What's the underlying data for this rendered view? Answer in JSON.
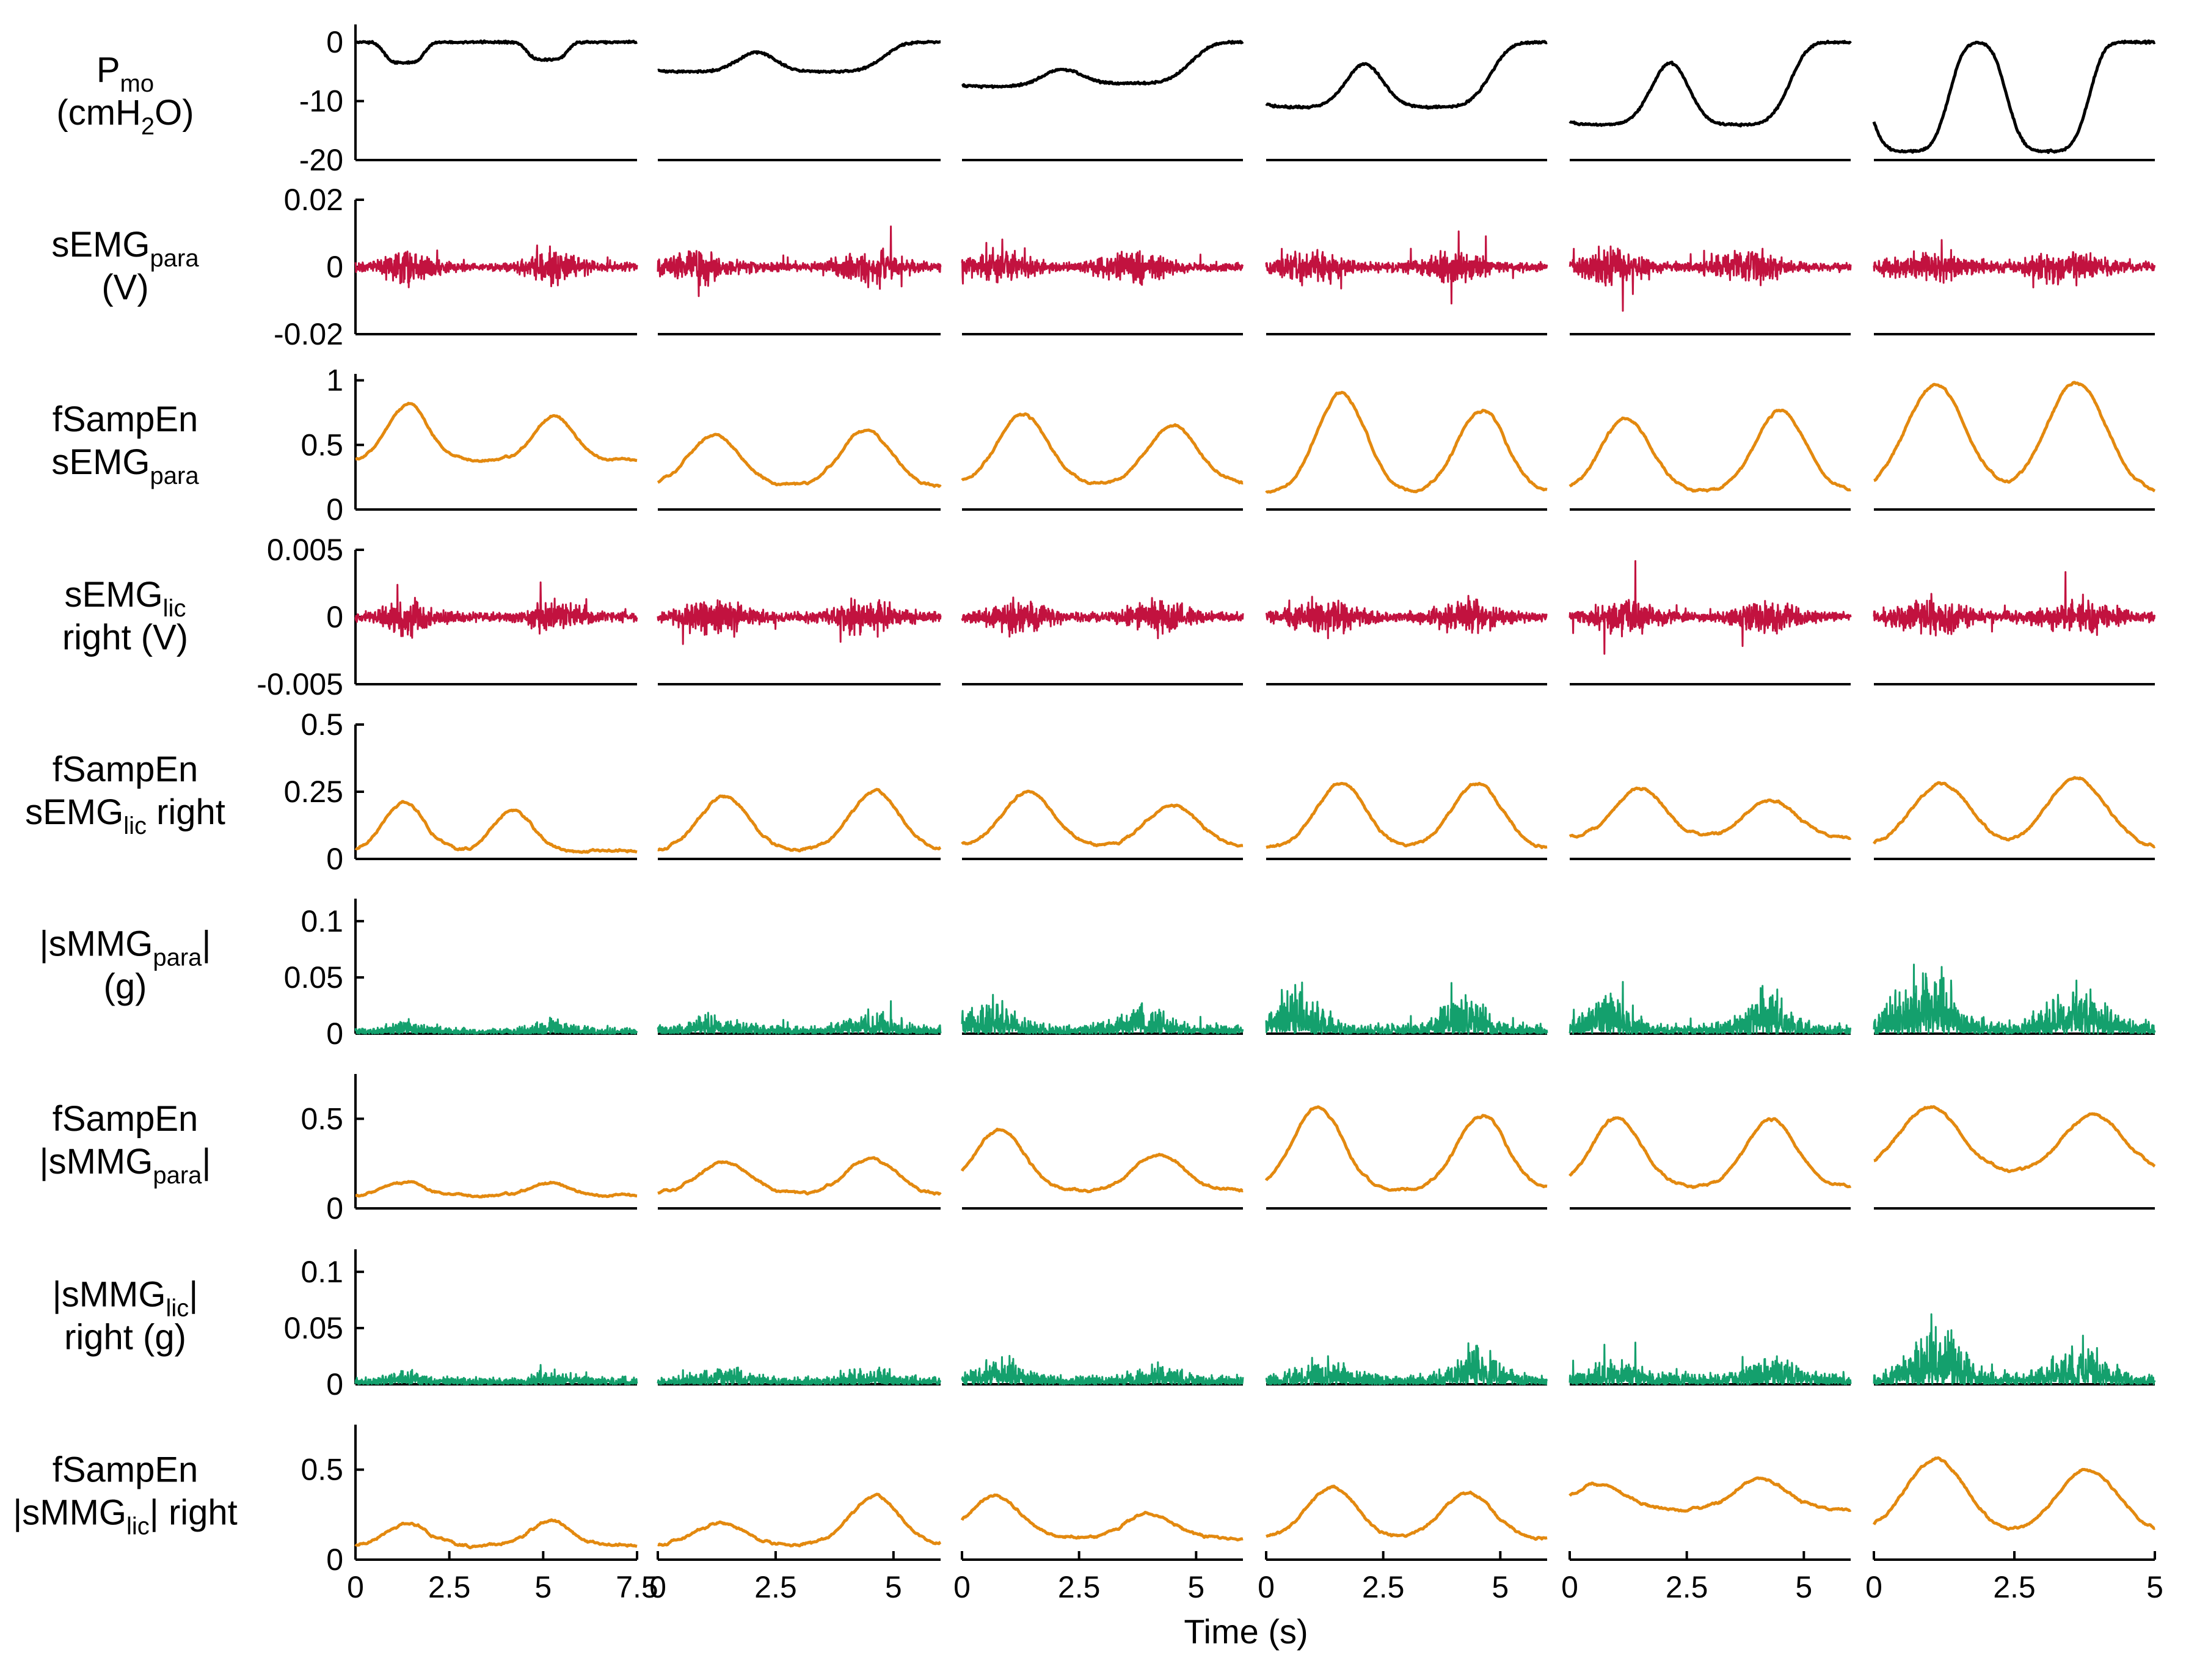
{
  "colors": {
    "pressure": "#000000",
    "emg": "#c2123f",
    "mmg": "#14a06d",
    "entropy": "#e3890f",
    "axis": "#000000"
  },
  "chart_data": {
    "type": "line",
    "title": "",
    "xlabel": "Time (s)",
    "subject_panels": 6,
    "columns": [
      {
        "xlim": [
          0,
          7.5
        ],
        "ticks": [
          0,
          2.5,
          5,
          7.5
        ],
        "tick_labels": [
          "0",
          "2.5",
          "5",
          "7.5"
        ],
        "ticks_text": "0      2.5      5      7.5"
      },
      {
        "xlim": [
          0,
          6
        ],
        "ticks": [
          0,
          2.5,
          5
        ],
        "tick_labels": [
          "0",
          "2.5",
          "5"
        ],
        "ticks_text": "0      2.5      5"
      },
      {
        "xlim": [
          0,
          6
        ],
        "ticks": [
          0,
          2.5,
          5
        ],
        "tick_labels": [
          "0",
          "2.5",
          "5"
        ],
        "ticks_text": "0      2.5      5"
      },
      {
        "xlim": [
          0,
          6
        ],
        "ticks": [
          0,
          2.5,
          5
        ],
        "tick_labels": [
          "0",
          "2.5",
          "5"
        ],
        "ticks_text": "0      2.5      5"
      },
      {
        "xlim": [
          0,
          6
        ],
        "ticks": [
          0,
          2.5,
          5
        ],
        "tick_labels": [
          "0",
          "2.5",
          "5"
        ],
        "ticks_text": "0      2.5      5"
      },
      {
        "xlim": [
          0,
          5
        ],
        "ticks": [
          0,
          2.5,
          5
        ],
        "tick_labels": [
          "0",
          "2.5",
          "5"
        ],
        "ticks_text": "0      2.5      5"
      }
    ],
    "x_tick_labels_shown": [
      "0",
      "2.5",
      "5",
      "7.5",
      "0",
      "2.5",
      "5",
      "0",
      "2.5",
      "5",
      "0",
      "2.5",
      "5",
      "0",
      "2.5",
      "5",
      "0",
      "2.5",
      "5"
    ],
    "rows": [
      {
        "id": "pmo",
        "label_lines": [
          {
            "main": "P",
            "sub": "mo",
            "post": ""
          },
          {
            "main": "(cmH",
            "sub": "2",
            "post": "O)"
          }
        ],
        "label_text": "Pmo (cmH2O)",
        "ylim": [
          -20,
          3
        ],
        "yticks": [
          -20,
          -10,
          0
        ],
        "ytick_labels": [
          "-20",
          "-10",
          "0"
        ],
        "color_key": "pressure",
        "kind": "pressure",
        "peaks_per_column": [
          [
            {
              "t": 1.3,
              "v": -3.5,
              "w": 0.6
            },
            {
              "t": 5.1,
              "v": -3,
              "w": 0.6
            }
          ],
          [
            {
              "t": 0.6,
              "v": -5,
              "w": 1.3
            },
            {
              "t": 3.6,
              "v": -5,
              "w": 1.3
            }
          ],
          [
            {
              "t": 0.6,
              "v": -7.5,
              "w": 1.5
            },
            {
              "t": 3.6,
              "v": -7,
              "w": 1.4
            }
          ],
          [
            {
              "t": 0.6,
              "v": -11,
              "w": 1.3
            },
            {
              "t": 3.6,
              "v": -11,
              "w": 1.3
            }
          ],
          [
            {
              "t": 0.6,
              "v": -14,
              "w": 1.3
            },
            {
              "t": 3.6,
              "v": -14,
              "w": 1.2
            }
          ],
          [
            {
              "t": 0.6,
              "v": -18.5,
              "w": 0.8
            },
            {
              "t": 3.1,
              "v": -18.5,
              "w": 0.8
            }
          ]
        ]
      },
      {
        "id": "semg_para",
        "label_lines": [
          {
            "main": "sEMG",
            "sub": "para",
            "post": ""
          },
          {
            "main": "(V)",
            "sub": "",
            "post": ""
          }
        ],
        "label_text": "sEMGpara (V)",
        "ylim": [
          -0.02,
          0.02
        ],
        "yticks": [
          -0.02,
          0,
          0.02
        ],
        "ytick_labels": [
          "-0.02",
          "0",
          "0.02"
        ],
        "color_key": "emg",
        "kind": "noise_signed",
        "amplitude": 0.005,
        "bursts_per_column": [
          [
            1.4,
            5.3
          ],
          [
            0.8,
            4.5
          ],
          [
            0.8,
            3.6
          ],
          [
            1.0,
            4.0
          ],
          [
            0.9,
            3.8
          ],
          [
            1.0,
            3.4
          ]
        ]
      },
      {
        "id": "fsampen_semg_para",
        "label_lines": [
          {
            "main": "fSampEn",
            "sub": "",
            "post": ""
          },
          {
            "main": "sEMG",
            "sub": "para",
            "post": ""
          }
        ],
        "label_text": "fSampEn sEMGpara",
        "ylim": [
          0,
          1.05
        ],
        "yticks": [
          0,
          0.5,
          1
        ],
        "ytick_labels": [
          "0",
          "0.5",
          "1"
        ],
        "color_key": "entropy",
        "kind": "entropy",
        "base_per_column": [
          0.38,
          0.18,
          0.2,
          0.12,
          0.14,
          0.12
        ],
        "peaks_per_column": [
          [
            {
              "t": 1.4,
              "v": 0.82
            },
            {
              "t": 5.3,
              "v": 0.72
            }
          ],
          [
            {
              "t": 1.2,
              "v": 0.58
            },
            {
              "t": 4.4,
              "v": 0.62
            }
          ],
          [
            {
              "t": 1.3,
              "v": 0.74
            },
            {
              "t": 4.5,
              "v": 0.65
            }
          ],
          [
            {
              "t": 1.6,
              "v": 0.9
            },
            {
              "t": 4.6,
              "v": 0.77
            }
          ],
          [
            {
              "t": 1.2,
              "v": 0.7
            },
            {
              "t": 4.5,
              "v": 0.77
            }
          ],
          [
            {
              "t": 1.1,
              "v": 0.97
            },
            {
              "t": 3.6,
              "v": 0.98
            }
          ]
        ]
      },
      {
        "id": "semg_lic",
        "label_lines": [
          {
            "main": "sEMG",
            "sub": "lic",
            "post": ""
          },
          {
            "main": "right (V)",
            "sub": "",
            "post": ""
          }
        ],
        "label_text": "sEMGlic right (V)",
        "ylim": [
          -0.005,
          0.005
        ],
        "yticks": [
          -0.005,
          0,
          0.005
        ],
        "ytick_labels": [
          "-0.005",
          "0",
          "0.005"
        ],
        "color_key": "emg",
        "kind": "noise_signed",
        "amplitude": 0.0013,
        "bursts_per_column": [
          [
            1.4,
            5.3
          ],
          [
            1.2,
            4.4
          ],
          [
            1.2,
            4.2
          ],
          [
            1.2,
            4.3
          ],
          [
            1.2,
            4.2
          ],
          [
            1.0,
            3.6
          ]
        ]
      },
      {
        "id": "fsampen_semg_lic",
        "label_lines": [
          {
            "main": "fSampEn",
            "sub": "",
            "post": ""
          },
          {
            "main": "sEMG",
            "sub": "lic",
            "post": " right"
          }
        ],
        "label_text": "fSampEn sEMGlic right",
        "ylim": [
          0,
          0.5
        ],
        "yticks": [
          0,
          0.25,
          0.5
        ],
        "ytick_labels": [
          "0",
          "0.25",
          "0.5"
        ],
        "color_key": "entropy",
        "kind": "entropy",
        "base_per_column": [
          0.03,
          0.03,
          0.05,
          0.04,
          0.08,
          0.04
        ],
        "peaks_per_column": [
          [
            {
              "t": 1.3,
              "v": 0.21
            },
            {
              "t": 4.2,
              "v": 0.18
            }
          ],
          [
            {
              "t": 1.4,
              "v": 0.23
            },
            {
              "t": 4.6,
              "v": 0.25
            }
          ],
          [
            {
              "t": 1.4,
              "v": 0.25
            },
            {
              "t": 4.5,
              "v": 0.2
            }
          ],
          [
            {
              "t": 1.6,
              "v": 0.28
            },
            {
              "t": 4.5,
              "v": 0.28
            }
          ],
          [
            {
              "t": 1.5,
              "v": 0.26
            },
            {
              "t": 4.3,
              "v": 0.22
            }
          ],
          [
            {
              "t": 1.2,
              "v": 0.28
            },
            {
              "t": 3.6,
              "v": 0.3
            }
          ]
        ]
      },
      {
        "id": "smmg_para",
        "label_lines": [
          {
            "main": "|sMMG",
            "sub": "para",
            "post": "|"
          },
          {
            "main": "(g)",
            "sub": "",
            "post": ""
          }
        ],
        "label_text": "|sMMGpara| (g)",
        "ylim": [
          0,
          0.12
        ],
        "yticks": [
          0,
          0.05,
          0.1
        ],
        "ytick_labels": [
          "0",
          "0.05",
          "0.1"
        ],
        "color_key": "mmg",
        "kind": "noise_abs",
        "base_per_column": [
          0.005,
          0.007,
          0.008,
          0.008,
          0.008,
          0.01
        ],
        "peaks_per_column": [
          [
            {
              "t": 1.4,
              "v": 0.007
            },
            {
              "t": 5.3,
              "v": 0.008
            }
          ],
          [
            {
              "t": 1.2,
              "v": 0.01
            },
            {
              "t": 4.5,
              "v": 0.013
            }
          ],
          [
            {
              "t": 0.6,
              "v": 0.025
            },
            {
              "t": 3.8,
              "v": 0.018
            }
          ],
          [
            {
              "t": 0.7,
              "v": 0.035
            },
            {
              "t": 4.2,
              "v": 0.03
            }
          ],
          [
            {
              "t": 0.8,
              "v": 0.025
            },
            {
              "t": 4.2,
              "v": 0.03
            }
          ],
          [
            {
              "t": 0.9,
              "v": 0.06
            },
            {
              "t": 3.6,
              "v": 0.035
            }
          ]
        ]
      },
      {
        "id": "fsampen_smmg_para",
        "label_lines": [
          {
            "main": "fSampEn",
            "sub": "",
            "post": ""
          },
          {
            "main": "|sMMG",
            "sub": "para",
            "post": "|"
          }
        ],
        "label_text": "fSampEn |sMMGpara|",
        "ylim": [
          0,
          0.75
        ],
        "yticks": [
          0,
          0.5
        ],
        "ytick_labels": [
          "0",
          "0.5"
        ],
        "color_key": "entropy",
        "kind": "entropy",
        "base_per_column": [
          0.07,
          0.08,
          0.1,
          0.1,
          0.12,
          0.2
        ],
        "peaks_per_column": [
          [
            {
              "t": 1.3,
              "v": 0.15
            },
            {
              "t": 5.2,
              "v": 0.14
            }
          ],
          [
            {
              "t": 1.4,
              "v": 0.26
            },
            {
              "t": 4.5,
              "v": 0.28
            }
          ],
          [
            {
              "t": 0.8,
              "v": 0.44
            },
            {
              "t": 4.2,
              "v": 0.3
            }
          ],
          [
            {
              "t": 1.1,
              "v": 0.57
            },
            {
              "t": 4.6,
              "v": 0.52
            }
          ],
          [
            {
              "t": 1.0,
              "v": 0.5
            },
            {
              "t": 4.3,
              "v": 0.5
            }
          ],
          [
            {
              "t": 1.0,
              "v": 0.57
            },
            {
              "t": 3.9,
              "v": 0.52
            }
          ]
        ]
      },
      {
        "id": "smmg_lic",
        "label_lines": [
          {
            "main": "|sMMG",
            "sub": "lic",
            "post": "|"
          },
          {
            "main": "right (g)",
            "sub": "",
            "post": ""
          }
        ],
        "label_text": "|sMMGlic| right (g)",
        "ylim": [
          0,
          0.12
        ],
        "yticks": [
          0,
          0.05,
          0.1
        ],
        "ytick_labels": [
          "0",
          "0.05",
          "0.1"
        ],
        "color_key": "mmg",
        "kind": "noise_abs",
        "base_per_column": [
          0.006,
          0.006,
          0.008,
          0.008,
          0.01,
          0.008
        ],
        "peaks_per_column": [
          [
            {
              "t": 1.4,
              "v": 0.006
            },
            {
              "t": 5.3,
              "v": 0.008
            }
          ],
          [
            {
              "t": 1.4,
              "v": 0.01
            },
            {
              "t": 4.5,
              "v": 0.01
            }
          ],
          [
            {
              "t": 0.8,
              "v": 0.018
            },
            {
              "t": 4.2,
              "v": 0.01
            }
          ],
          [
            {
              "t": 1.2,
              "v": 0.015
            },
            {
              "t": 4.5,
              "v": 0.028
            }
          ],
          [
            {
              "t": 1.0,
              "v": 0.012
            },
            {
              "t": 4.3,
              "v": 0.018
            }
          ],
          [
            {
              "t": 1.1,
              "v": 0.045
            },
            {
              "t": 3.6,
              "v": 0.03
            }
          ]
        ]
      },
      {
        "id": "fsampen_smmg_lic",
        "label_lines": [
          {
            "main": "fSampEn",
            "sub": "",
            "post": ""
          },
          {
            "main": "|sMMG",
            "sub": "lic",
            "post": "| right"
          }
        ],
        "label_text": "fSampEn |sMMGlic| right",
        "ylim": [
          0,
          0.75
        ],
        "yticks": [
          0,
          0.5
        ],
        "ytick_labels": [
          "0",
          "0.5"
        ],
        "color_key": "entropy",
        "kind": "entropy",
        "base_per_column": [
          0.08,
          0.08,
          0.12,
          0.12,
          0.28,
          0.15
        ],
        "peaks_per_column": [
          [
            {
              "t": 1.4,
              "v": 0.2
            },
            {
              "t": 5.2,
              "v": 0.22
            }
          ],
          [
            {
              "t": 1.3,
              "v": 0.2
            },
            {
              "t": 4.6,
              "v": 0.35
            }
          ],
          [
            {
              "t": 0.7,
              "v": 0.36
            },
            {
              "t": 4.0,
              "v": 0.25
            }
          ],
          [
            {
              "t": 1.4,
              "v": 0.4
            },
            {
              "t": 4.3,
              "v": 0.37
            }
          ],
          [
            {
              "t": 0.6,
              "v": 0.42
            },
            {
              "t": 4.1,
              "v": 0.45
            }
          ],
          [
            {
              "t": 1.1,
              "v": 0.56
            },
            {
              "t": 3.8,
              "v": 0.5
            }
          ]
        ]
      }
    ]
  }
}
